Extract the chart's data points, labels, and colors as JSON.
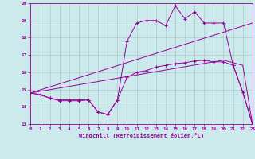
{
  "xlabel": "Windchill (Refroidissement éolien,°C)",
  "background_color": "#cce9ec",
  "grid_color": "#aacccc",
  "line_color": "#990099",
  "xlim": [
    0,
    23
  ],
  "ylim": [
    13,
    20
  ],
  "yticks": [
    13,
    14,
    15,
    16,
    17,
    18,
    19,
    20
  ],
  "xticks": [
    0,
    1,
    2,
    3,
    4,
    5,
    6,
    7,
    8,
    9,
    10,
    11,
    12,
    13,
    14,
    15,
    16,
    17,
    18,
    19,
    20,
    21,
    22,
    23
  ],
  "line1_x": [
    0,
    1,
    2,
    3,
    4,
    5,
    6,
    7,
    8,
    9,
    10,
    11,
    12,
    13,
    14,
    15,
    16,
    17,
    18,
    19,
    20,
    21,
    22,
    23
  ],
  "line1_y": [
    14.8,
    14.7,
    14.5,
    14.4,
    14.4,
    14.4,
    14.4,
    13.7,
    13.55,
    14.4,
    17.8,
    18.85,
    19.0,
    19.0,
    18.7,
    19.85,
    19.1,
    19.5,
    18.85,
    18.85,
    18.85,
    16.4,
    14.85,
    13.0
  ],
  "line2_x": [
    0,
    1,
    2,
    3,
    4,
    5,
    6,
    7,
    8,
    9,
    10,
    11,
    12,
    13,
    14,
    15,
    16,
    17,
    18,
    19,
    20,
    21,
    22,
    23
  ],
  "line2_y": [
    14.8,
    14.7,
    14.5,
    14.35,
    14.35,
    14.35,
    14.4,
    13.7,
    13.55,
    14.4,
    15.7,
    16.0,
    16.1,
    16.3,
    16.4,
    16.5,
    16.55,
    16.65,
    16.7,
    16.6,
    16.6,
    16.4,
    14.85,
    13.0
  ],
  "line3_x": [
    0,
    23
  ],
  "line3_y": [
    14.8,
    18.85
  ],
  "line4_x": [
    0,
    20,
    22,
    23
  ],
  "line4_y": [
    14.8,
    16.7,
    16.4,
    13.0
  ]
}
